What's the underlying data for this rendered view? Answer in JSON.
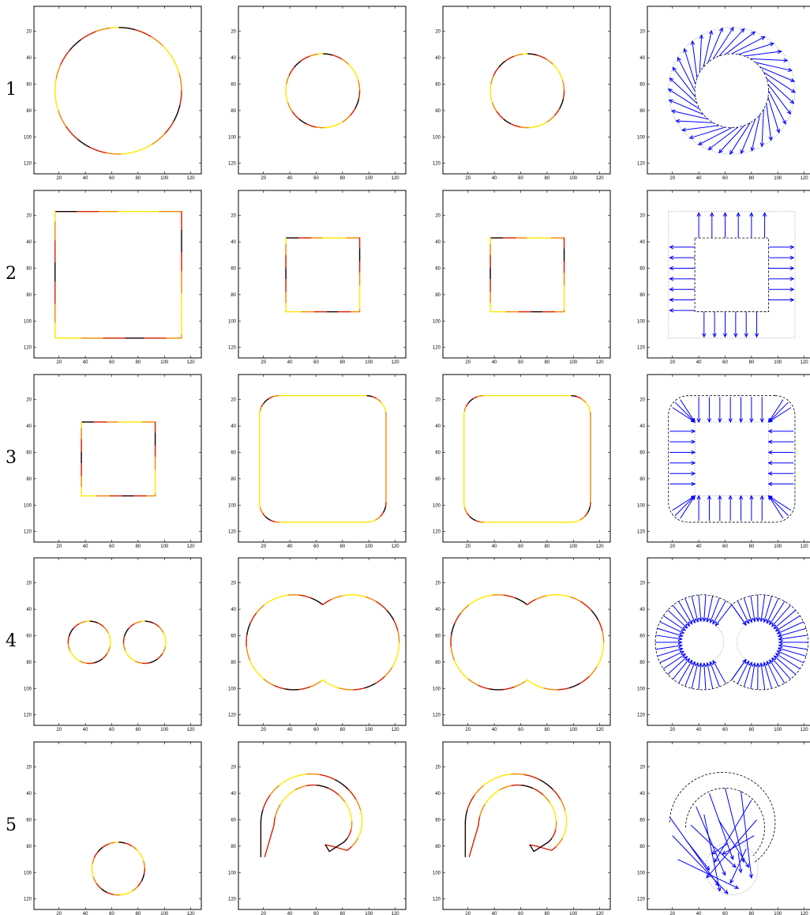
{
  "rows": [
    {
      "label": "1",
      "kind": "circle"
    },
    {
      "label": "2",
      "kind": "square"
    },
    {
      "label": "3",
      "kind": "roundsquare"
    },
    {
      "label": "4",
      "kind": "twocircles"
    },
    {
      "label": "5",
      "kind": "hook"
    }
  ],
  "chart_data": {
    "type": "scatter",
    "description_note": "",
    "xlim": [
      1,
      128
    ],
    "ylim": [
      1,
      128
    ],
    "y_reversed": true,
    "x_ticks": [
      "20",
      "40",
      "60",
      "80",
      "100",
      "120"
    ],
    "y_ticks": [
      "20",
      "40",
      "60",
      "80",
      "100",
      "120"
    ],
    "colors": {
      "hot_dark": "#1a0000",
      "hot_red": "#d62000",
      "hot_orange": "#f08a00",
      "hot_yellow": "#ffe800",
      "arrow_blue": "#0000ff",
      "contour_black": "#000000",
      "dotted_gray": "#888888"
    },
    "panels": [
      {
        "row": 1,
        "col": 1,
        "shape": "circle",
        "center": [
          65,
          65
        ],
        "radius": 48
      },
      {
        "row": 1,
        "col": 2,
        "shape": "circle",
        "center": [
          65,
          65
        ],
        "radius": 28
      },
      {
        "row": 1,
        "col": 3,
        "shape": "circle",
        "center": [
          65,
          65
        ],
        "radius": 28
      },
      {
        "row": 1,
        "col": 4,
        "shape": "arrows-circle",
        "outer_radius": 48,
        "inner_radius": 28
      },
      {
        "row": 2,
        "col": 1,
        "shape": "square",
        "xmin": 17,
        "xmax": 113,
        "ymin": 17,
        "ymax": 113
      },
      {
        "row": 2,
        "col": 2,
        "shape": "square",
        "xmin": 37,
        "xmax": 93,
        "ymin": 37,
        "ymax": 93
      },
      {
        "row": 2,
        "col": 3,
        "shape": "square",
        "xmin": 37,
        "xmax": 93,
        "ymin": 37,
        "ymax": 93
      },
      {
        "row": 2,
        "col": 4,
        "shape": "arrows-square"
      },
      {
        "row": 3,
        "col": 1,
        "shape": "square",
        "xmin": 37,
        "xmax": 93,
        "ymin": 37,
        "ymax": 93
      },
      {
        "row": 3,
        "col": 2,
        "shape": "roundsquare",
        "xmin": 17,
        "xmax": 113,
        "ymin": 17,
        "ymax": 113,
        "corner": 15
      },
      {
        "row": 3,
        "col": 3,
        "shape": "roundsquare",
        "xmin": 17,
        "xmax": 113,
        "ymin": 17,
        "ymax": 113,
        "corner": 15
      },
      {
        "row": 3,
        "col": 4,
        "shape": "arrows-roundsquare"
      },
      {
        "row": 4,
        "col": 1,
        "shape": "twocircles",
        "centers": [
          [
            43,
            65
          ],
          [
            85,
            65
          ]
        ],
        "radius": 16
      },
      {
        "row": 4,
        "col": 2,
        "shape": "twocircles",
        "centers": [
          [
            43,
            65
          ],
          [
            87,
            65
          ]
        ],
        "radius": 36
      },
      {
        "row": 4,
        "col": 3,
        "shape": "twocircles",
        "centers": [
          [
            43,
            65
          ],
          [
            87,
            65
          ]
        ],
        "radius": 36
      },
      {
        "row": 4,
        "col": 4,
        "shape": "arrows-twocircles"
      },
      {
        "row": 5,
        "col": 1,
        "shape": "circle",
        "center": [
          65,
          97
        ],
        "radius": 20
      },
      {
        "row": 5,
        "col": 2,
        "shape": "hook"
      },
      {
        "row": 5,
        "col": 3,
        "shape": "hook"
      },
      {
        "row": 5,
        "col": 4,
        "shape": "arrows-hook"
      }
    ]
  }
}
